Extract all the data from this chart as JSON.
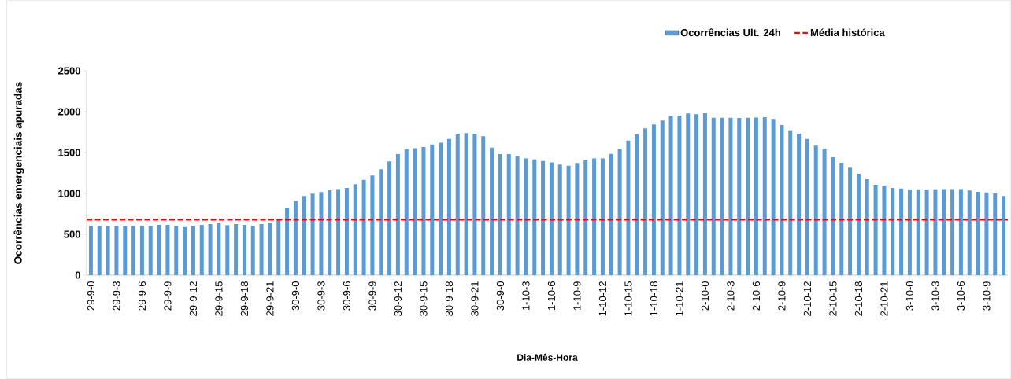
{
  "chart_data": {
    "type": "bar",
    "xlabel": "Dia-Mês-Hora",
    "ylabel": "Ocorrências emergenciais apuradas",
    "categories": [
      "29-9-0",
      null,
      null,
      "29-9-3",
      null,
      null,
      "29-9-6",
      null,
      null,
      "29-9-9",
      null,
      null,
      "29-9-12",
      null,
      null,
      "29-9-15",
      null,
      null,
      "29-9-18",
      null,
      null,
      "29-9-21",
      null,
      null,
      "30-9-0",
      null,
      null,
      "30-9-3",
      null,
      null,
      "30-9-6",
      null,
      null,
      "30-9-9",
      null,
      null,
      "30-9-12",
      null,
      null,
      "30-9-15",
      null,
      null,
      "30-9-18",
      null,
      null,
      "30-9-21",
      null,
      null,
      "30-9-0",
      null,
      null,
      "1-10-3",
      null,
      null,
      "1-10-6",
      null,
      null,
      "1-10-9",
      null,
      null,
      "1-10-12",
      null,
      null,
      "1-10-15",
      null,
      null,
      "1-10-18",
      null,
      null,
      "1-10-21",
      null,
      null,
      "2-10-0",
      null,
      null,
      "2-10-3",
      null,
      null,
      "2-10-6",
      null,
      null,
      "2-10-9",
      null,
      null,
      "2-10-12",
      null,
      null,
      "2-10-15",
      null,
      null,
      "2-10-18",
      null,
      null,
      "2-10-21",
      null,
      null,
      "3-10-0",
      null,
      null,
      "3-10-3",
      null,
      null,
      "3-10-6",
      null,
      null,
      "3-10-9",
      null,
      null
    ],
    "series": [
      {
        "name": "Ocorrências Ult. 24h",
        "color": "#5b9bd5",
        "values": [
          606,
          606,
          606,
          606,
          603,
          603,
          603,
          606,
          615,
          615,
          603,
          590,
          603,
          615,
          625,
          635,
          612,
          625,
          615,
          606,
          625,
          641,
          679,
          827,
          910,
          968,
          997,
          1016,
          1038,
          1054,
          1067,
          1112,
          1167,
          1218,
          1295,
          1391,
          1481,
          1542,
          1554,
          1567,
          1599,
          1619,
          1667,
          1721,
          1737,
          1731,
          1699,
          1561,
          1481,
          1481,
          1455,
          1429,
          1417,
          1397,
          1381,
          1353,
          1340,
          1372,
          1410,
          1429,
          1429,
          1484,
          1545,
          1647,
          1721,
          1795,
          1843,
          1891,
          1946,
          1952,
          1978,
          1968,
          1981,
          1926,
          1926,
          1926,
          1923,
          1926,
          1929,
          1933,
          1910,
          1837,
          1772,
          1731,
          1667,
          1583,
          1548,
          1442,
          1375,
          1314,
          1240,
          1173,
          1106,
          1096,
          1067,
          1061,
          1048,
          1051,
          1048,
          1051,
          1054,
          1054,
          1054,
          1035,
          1019,
          1013,
          1000,
          968
        ]
      }
    ],
    "ref_lines": [
      {
        "axis": "y",
        "value": 680,
        "label": "Média histórica",
        "color": "#ff0000",
        "line_style": "dashed"
      }
    ],
    "ylim": [
      0,
      2500
    ],
    "yticks": [
      0,
      500,
      1000,
      1500,
      2000,
      2500
    ],
    "legend": "top right"
  }
}
